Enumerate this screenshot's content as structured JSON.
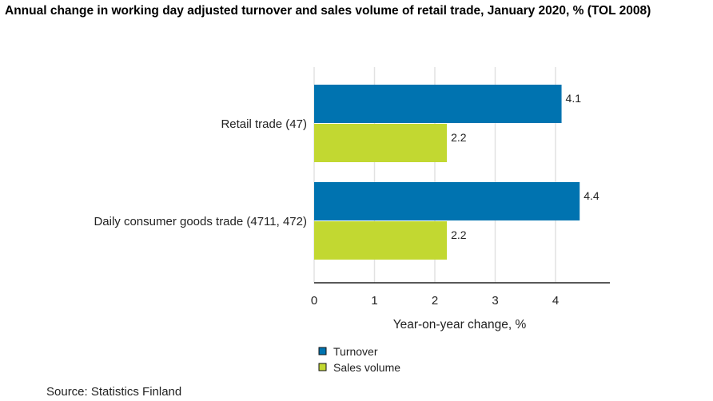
{
  "chart_data": {
    "type": "bar",
    "orientation": "horizontal",
    "title": "Annual change in working day adjusted turnover and sales volume of retail trade, January 2020, % (TOL 2008)",
    "categories": [
      "Retail trade (47)",
      "Daily consumer goods trade (4711, 472)"
    ],
    "series": [
      {
        "name": "Turnover",
        "values": [
          4.1,
          4.4
        ],
        "color": "#0073b0"
      },
      {
        "name": "Sales volume",
        "values": [
          2.2,
          2.2
        ],
        "color": "#c2d831"
      }
    ],
    "xlabel": "Year-on-year change, %",
    "xlim": [
      0,
      4.9
    ],
    "xticks": [
      0,
      1,
      2,
      3,
      4
    ],
    "grid": true,
    "legend": "bottom-left"
  },
  "source": "Source: Statistics Finland"
}
